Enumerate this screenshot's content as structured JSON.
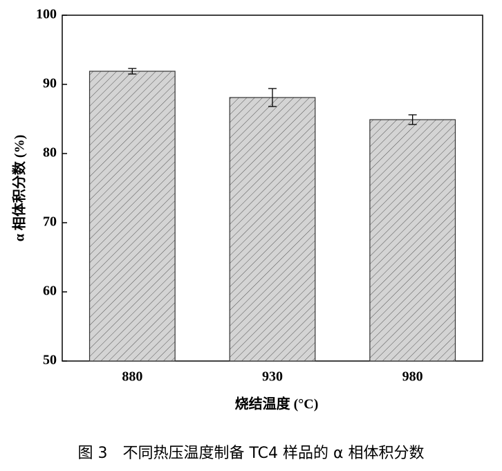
{
  "chart_data": {
    "type": "bar",
    "x_label": "烧结温度 (°C)",
    "y_label": "α 相体积分数 (%)",
    "caption": "图 3　不同热压温度制备 TC4 样品的 α 相体积分数",
    "categories": [
      "880",
      "930",
      "980"
    ],
    "values": [
      91.9,
      88.1,
      84.9
    ],
    "errors": [
      0.4,
      1.3,
      0.7
    ],
    "color": "#d4d4d4",
    "ylim": [
      50,
      100
    ],
    "yticks": [
      50,
      60,
      70,
      80,
      90,
      100
    ]
  }
}
